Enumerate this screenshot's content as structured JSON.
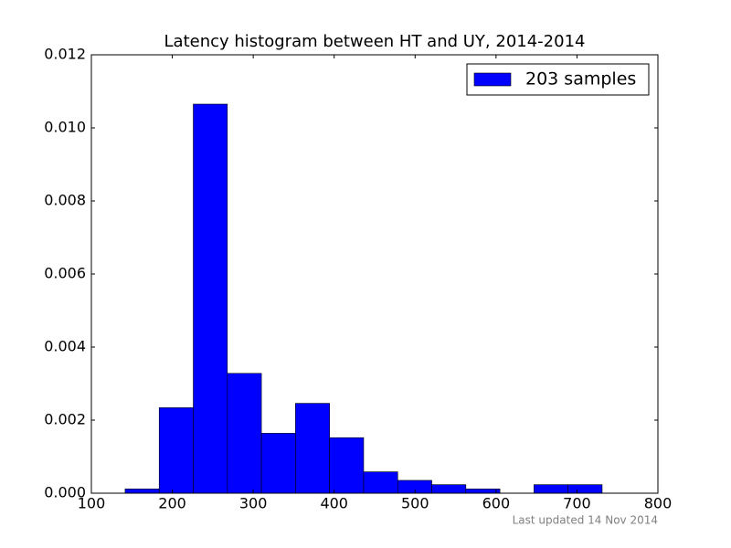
{
  "chart_data": {
    "type": "histogram",
    "title": "Latency histogram between HT and UY, 2014-2014",
    "bins": [
      141.7,
      183.8,
      225.9,
      268.0,
      310.1,
      352.2,
      394.3,
      436.4,
      478.5,
      520.6,
      562.7,
      604.8,
      646.9,
      689.0,
      731.1
    ],
    "series": [
      {
        "name": "203 samples",
        "color": "#0000ff",
        "values": [
          0.000117,
          0.00234,
          0.01065,
          0.00328,
          0.00164,
          0.00246,
          0.00152,
          0.000585,
          0.000351,
          0.000234,
          0.000117,
          0,
          0.000234,
          0.000234
        ]
      }
    ],
    "xlim": [
      100,
      800
    ],
    "xticks": [
      100,
      200,
      300,
      400,
      500,
      600,
      700,
      800
    ],
    "ylim": [
      0,
      0.012
    ],
    "yticks": [
      {
        "value": 0,
        "label": "0.000"
      },
      {
        "value": 0.002,
        "label": "0.002"
      },
      {
        "value": 0.004,
        "label": "0.004"
      },
      {
        "value": 0.006,
        "label": "0.006"
      },
      {
        "value": 0.008,
        "label": "0.008"
      },
      {
        "value": 0.01,
        "label": "0.010"
      },
      {
        "value": 0.012,
        "label": "0.012"
      }
    ],
    "legend": "upper right",
    "footer": "Last updated 14 Nov 2014"
  }
}
